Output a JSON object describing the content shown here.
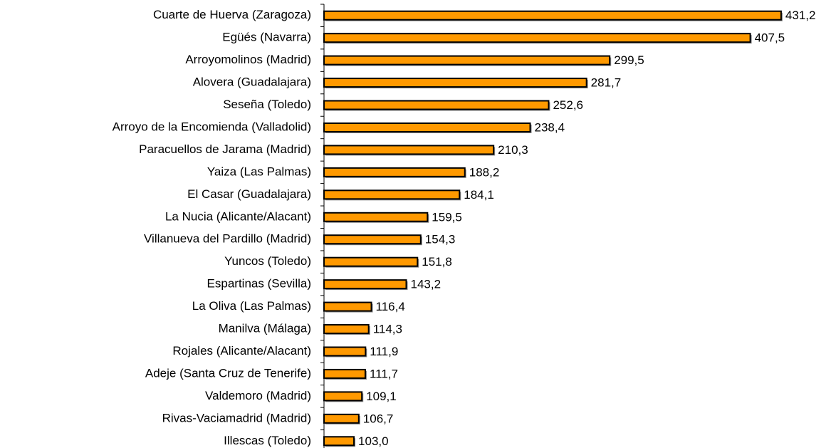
{
  "chart_data": {
    "type": "bar",
    "orientation": "horizontal",
    "categories": [
      "Cuarte de Huerva (Zaragoza)",
      "Egüés (Navarra)",
      "Arroyomolinos (Madrid)",
      "Alovera (Guadalajara)",
      "Seseña (Toledo)",
      "Arroyo de la Encomienda (Valladolid)",
      "Paracuellos de Jarama (Madrid)",
      "Yaiza (Las Palmas)",
      "El Casar (Guadalajara)",
      "La Nucia (Alicante/Alacant)",
      "Villanueva del Pardillo (Madrid)",
      "Yuncos (Toledo)",
      "Espartinas (Sevilla)",
      "La Oliva (Las Palmas)",
      "Manilva (Málaga)",
      "Rojales (Alicante/Alacant)",
      "Adeje (Santa Cruz de Tenerife)",
      "Valdemoro (Madrid)",
      "Rivas-Vaciamadrid (Madrid)",
      "Illescas (Toledo)"
    ],
    "values": [
      431.2,
      407.5,
      299.5,
      281.7,
      252.6,
      238.4,
      210.3,
      188.2,
      184.1,
      159.5,
      154.3,
      151.8,
      143.2,
      116.4,
      114.3,
      111.9,
      111.7,
      109.1,
      106.7,
      103.0
    ],
    "value_labels": [
      "431,2",
      "407,5",
      "299,5",
      "281,7",
      "252,6",
      "238,4",
      "210,3",
      "188,2",
      "184,1",
      "159,5",
      "154,3",
      "151,8",
      "143,2",
      "116,4",
      "114,3",
      "111,9",
      "111,7",
      "109,1",
      "106,7",
      "103,0"
    ],
    "color": "#ff9900",
    "xlim": [
      80,
      440
    ]
  }
}
